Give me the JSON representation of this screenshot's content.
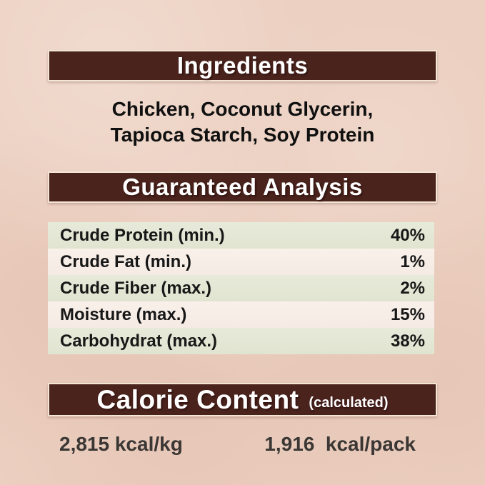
{
  "ingredients": {
    "title": "Ingredients",
    "line1": "Chicken, Coconut Glycerin,",
    "line2": "Tapioca Starch, Soy Protein"
  },
  "guaranteed_analysis": {
    "title": "Guaranteed Analysis",
    "rows": [
      {
        "name": "Crude Protein (min.)",
        "value": "40%"
      },
      {
        "name": "Crude Fat (min.)",
        "value": "1%"
      },
      {
        "name": "Crude Fiber (max.)",
        "value": "2%"
      },
      {
        "name": "Moisture (max.)",
        "value": "15%"
      },
      {
        "name": "Carbohydrat (max.)",
        "value": "38%"
      }
    ]
  },
  "calorie_content": {
    "title": "Calorie Content",
    "subtitle": "(calculated)",
    "per_kg": "2,815 kcal/kg",
    "per_pack": "1,916  kcal/pack"
  },
  "colors": {
    "background": "#ecd0c1",
    "banner": "#4a231d",
    "banner_border": "#f4e6d4",
    "banner_text": "#ffffff",
    "row_odd": "#e3e6d4",
    "row_even": "#f7eee7",
    "body_text": "#101010",
    "calorie_text": "#3a3734"
  }
}
